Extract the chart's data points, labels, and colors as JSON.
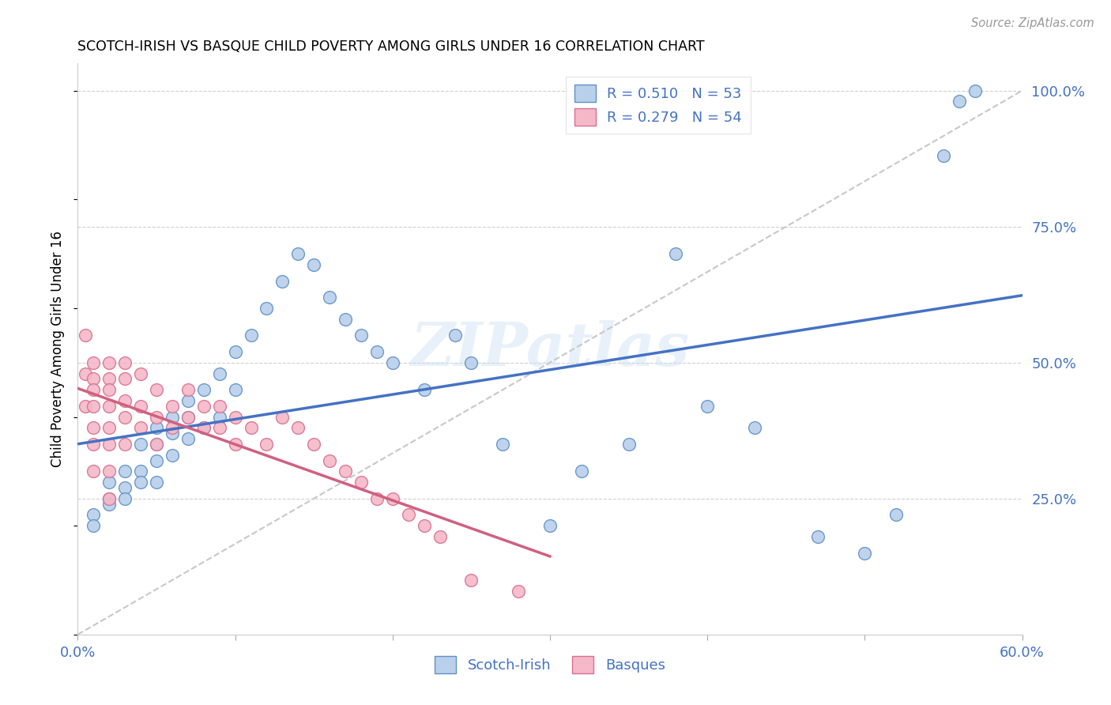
{
  "title": "SCOTCH-IRISH VS BASQUE CHILD POVERTY AMONG GIRLS UNDER 16 CORRELATION CHART",
  "source": "Source: ZipAtlas.com",
  "ylabel": "Child Poverty Among Girls Under 16",
  "scotch_irish_R": 0.51,
  "scotch_irish_N": 53,
  "basque_R": 0.279,
  "basque_N": 54,
  "scotch_irish_color": "#b8d0ea",
  "basque_color": "#f5b8c8",
  "scotch_irish_edge_color": "#6090c8",
  "basque_edge_color": "#d87090",
  "scotch_irish_line_color": "#4472c4",
  "basque_line_color": "#d06080",
  "diagonal_color": "#c8c8c8",
  "watermark": "ZIPatlas",
  "scotch_irish_x": [
    0.01,
    0.01,
    0.02,
    0.02,
    0.02,
    0.03,
    0.03,
    0.03,
    0.04,
    0.04,
    0.04,
    0.05,
    0.05,
    0.05,
    0.05,
    0.06,
    0.06,
    0.06,
    0.07,
    0.07,
    0.07,
    0.08,
    0.08,
    0.09,
    0.09,
    0.1,
    0.1,
    0.11,
    0.12,
    0.13,
    0.14,
    0.15,
    0.16,
    0.17,
    0.18,
    0.19,
    0.2,
    0.22,
    0.24,
    0.25,
    0.27,
    0.3,
    0.32,
    0.35,
    0.38,
    0.4,
    0.43,
    0.47,
    0.5,
    0.52,
    0.55,
    0.56,
    0.57
  ],
  "scotch_irish_y": [
    0.22,
    0.2,
    0.28,
    0.25,
    0.24,
    0.3,
    0.27,
    0.25,
    0.35,
    0.3,
    0.28,
    0.38,
    0.35,
    0.32,
    0.28,
    0.4,
    0.37,
    0.33,
    0.43,
    0.4,
    0.36,
    0.45,
    0.38,
    0.48,
    0.4,
    0.52,
    0.45,
    0.55,
    0.6,
    0.65,
    0.7,
    0.68,
    0.62,
    0.58,
    0.55,
    0.52,
    0.5,
    0.45,
    0.55,
    0.5,
    0.35,
    0.2,
    0.3,
    0.35,
    0.7,
    0.42,
    0.38,
    0.18,
    0.15,
    0.22,
    0.88,
    0.98,
    1.0
  ],
  "basque_x": [
    0.005,
    0.005,
    0.005,
    0.01,
    0.01,
    0.01,
    0.01,
    0.01,
    0.01,
    0.01,
    0.02,
    0.02,
    0.02,
    0.02,
    0.02,
    0.02,
    0.02,
    0.02,
    0.03,
    0.03,
    0.03,
    0.03,
    0.03,
    0.04,
    0.04,
    0.04,
    0.05,
    0.05,
    0.05,
    0.06,
    0.06,
    0.07,
    0.07,
    0.08,
    0.08,
    0.09,
    0.09,
    0.1,
    0.1,
    0.11,
    0.12,
    0.13,
    0.14,
    0.15,
    0.16,
    0.17,
    0.18,
    0.19,
    0.2,
    0.21,
    0.22,
    0.23,
    0.25,
    0.28
  ],
  "basque_y": [
    0.55,
    0.48,
    0.42,
    0.5,
    0.47,
    0.45,
    0.42,
    0.38,
    0.35,
    0.3,
    0.5,
    0.47,
    0.45,
    0.42,
    0.38,
    0.35,
    0.3,
    0.25,
    0.5,
    0.47,
    0.43,
    0.4,
    0.35,
    0.48,
    0.42,
    0.38,
    0.45,
    0.4,
    0.35,
    0.42,
    0.38,
    0.45,
    0.4,
    0.42,
    0.38,
    0.42,
    0.38,
    0.4,
    0.35,
    0.38,
    0.35,
    0.4,
    0.38,
    0.35,
    0.32,
    0.3,
    0.28,
    0.25,
    0.25,
    0.22,
    0.2,
    0.18,
    0.1,
    0.08
  ],
  "xlim": [
    0.0,
    0.6
  ],
  "ylim": [
    0.0,
    1.05
  ],
  "x_tick_positions": [
    0.0,
    0.1,
    0.2,
    0.3,
    0.4,
    0.5,
    0.6
  ],
  "x_tick_labels": [
    "0.0%",
    "",
    "",
    "",
    "",
    "",
    "60.0%"
  ],
  "y_tick_positions": [
    0.25,
    0.5,
    0.75,
    1.0
  ],
  "y_tick_labels": [
    "25.0%",
    "50.0%",
    "75.0%",
    "100.0%"
  ]
}
